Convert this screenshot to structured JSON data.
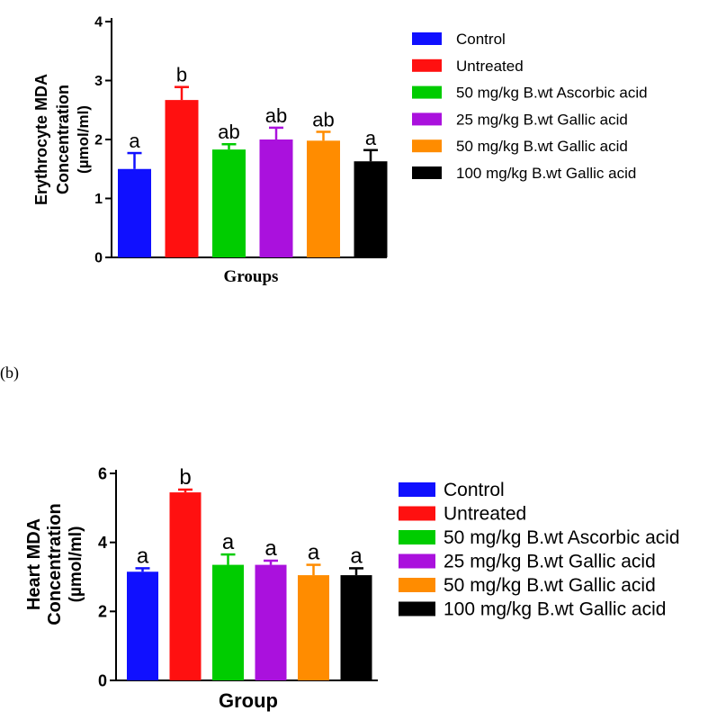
{
  "panel_label": "(b)",
  "chart_data": [
    {
      "type": "bar",
      "categories": [
        "Control",
        "Untreated",
        "50 mg/kg B.wt Ascorbic acid",
        "25 mg/kg B.wt Gallic acid",
        "50 mg/kg B.wt Gallic acid",
        "100 mg/kg B.wt Gallic acid"
      ],
      "values": [
        1.5,
        2.67,
        1.83,
        2.0,
        1.98,
        1.63
      ],
      "errors": [
        0.27,
        0.22,
        0.09,
        0.2,
        0.15,
        0.19
      ],
      "significance": [
        "a",
        "b",
        "ab",
        "ab",
        "ab",
        "a"
      ],
      "colors": [
        "#1010ff",
        "#ff1010",
        "#00cc00",
        "#aa11dd",
        "#ff8c00",
        "#000000"
      ],
      "ylabel_line1": "Erythrocyte MDA",
      "ylabel_line2": "Concentration",
      "ylabel_line3": "(µmol/ml)",
      "xlabel": "Groups",
      "ylim": [
        0,
        4
      ],
      "yticks": [
        "0",
        "1",
        "2",
        "3",
        "4"
      ],
      "legend": [
        "Control",
        "Untreated",
        "50 mg/kg B.wt Ascorbic acid",
        "25 mg/kg B.wt Gallic acid",
        "50 mg/kg B.wt Gallic acid",
        "100 mg/kg B.wt Gallic acid"
      ],
      "legend_position": "right",
      "grid": false
    },
    {
      "type": "bar",
      "categories": [
        "Control",
        "Untreated",
        "50 mg/kg B.wt Ascorbic acid",
        "25 mg/kg B.wt Gallic acid",
        "50 mg/kg B.wt Gallic acid",
        "100 mg/kg B.wt Gallic acid"
      ],
      "values": [
        3.15,
        5.45,
        3.35,
        3.35,
        3.05,
        3.05
      ],
      "errors": [
        0.1,
        0.08,
        0.3,
        0.12,
        0.3,
        0.2
      ],
      "significance": [
        "a",
        "b",
        "a",
        "a",
        "a",
        "a"
      ],
      "colors": [
        "#1010ff",
        "#ff1010",
        "#00cc00",
        "#aa11dd",
        "#ff8c00",
        "#000000"
      ],
      "ylabel_line1": "Heart MDA",
      "ylabel_line2": "Concentration",
      "ylabel_line3": "(µmol/ml)",
      "xlabel": "Group",
      "ylim": [
        0,
        6
      ],
      "yticks": [
        "0",
        "2",
        "4",
        "6"
      ],
      "legend": [
        "Control",
        "Untreated",
        "50 mg/kg B.wt Ascorbic acid",
        "25 mg/kg B.wt Gallic acid",
        "50 mg/kg B.wt Gallic acid",
        "100 mg/kg B.wt Gallic acid"
      ],
      "legend_position": "right",
      "grid": false
    }
  ]
}
